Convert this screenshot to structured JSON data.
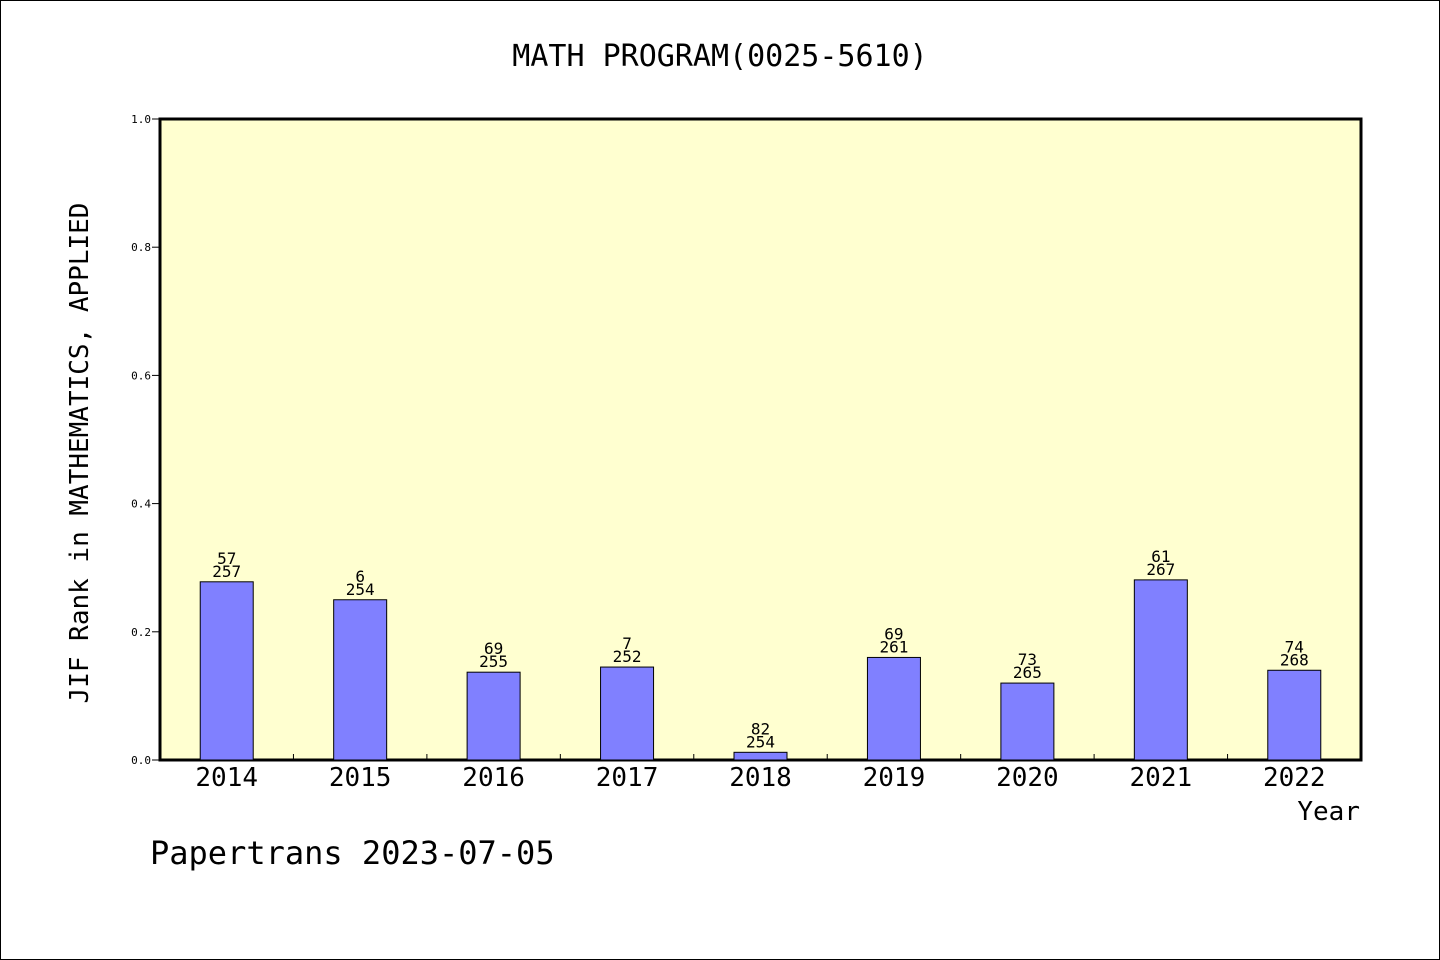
{
  "chart_data": {
    "type": "bar",
    "title": "MATH PROGRAM(0025-5610)",
    "xlabel": "Year",
    "ylabel": "JIF Rank in MATHEMATICS, APPLIED",
    "ylim": [
      0,
      1.0
    ],
    "yticks": [
      "0.0",
      "0.2",
      "0.4",
      "0.6",
      "0.8",
      "1.0"
    ],
    "categories": [
      "2014",
      "2015",
      "2016",
      "2017",
      "2018",
      "2019",
      "2020",
      "2021",
      "2022"
    ],
    "values": [
      0.278,
      0.25,
      0.137,
      0.145,
      0.012,
      0.16,
      0.12,
      0.281,
      0.14
    ],
    "rank_labels": [
      "57",
      "6",
      "69",
      "7",
      "82",
      "69",
      "73",
      "61",
      "74"
    ],
    "total_labels": [
      "257",
      "254",
      "255",
      "252",
      "254",
      "261",
      "265",
      "267",
      "268"
    ],
    "grid": false,
    "colors": {
      "plot_background": "#ffffd0",
      "bar_fill": "#8080ff",
      "bar_stroke": "#000000"
    }
  },
  "footer": "Papertrans 2023-07-05"
}
